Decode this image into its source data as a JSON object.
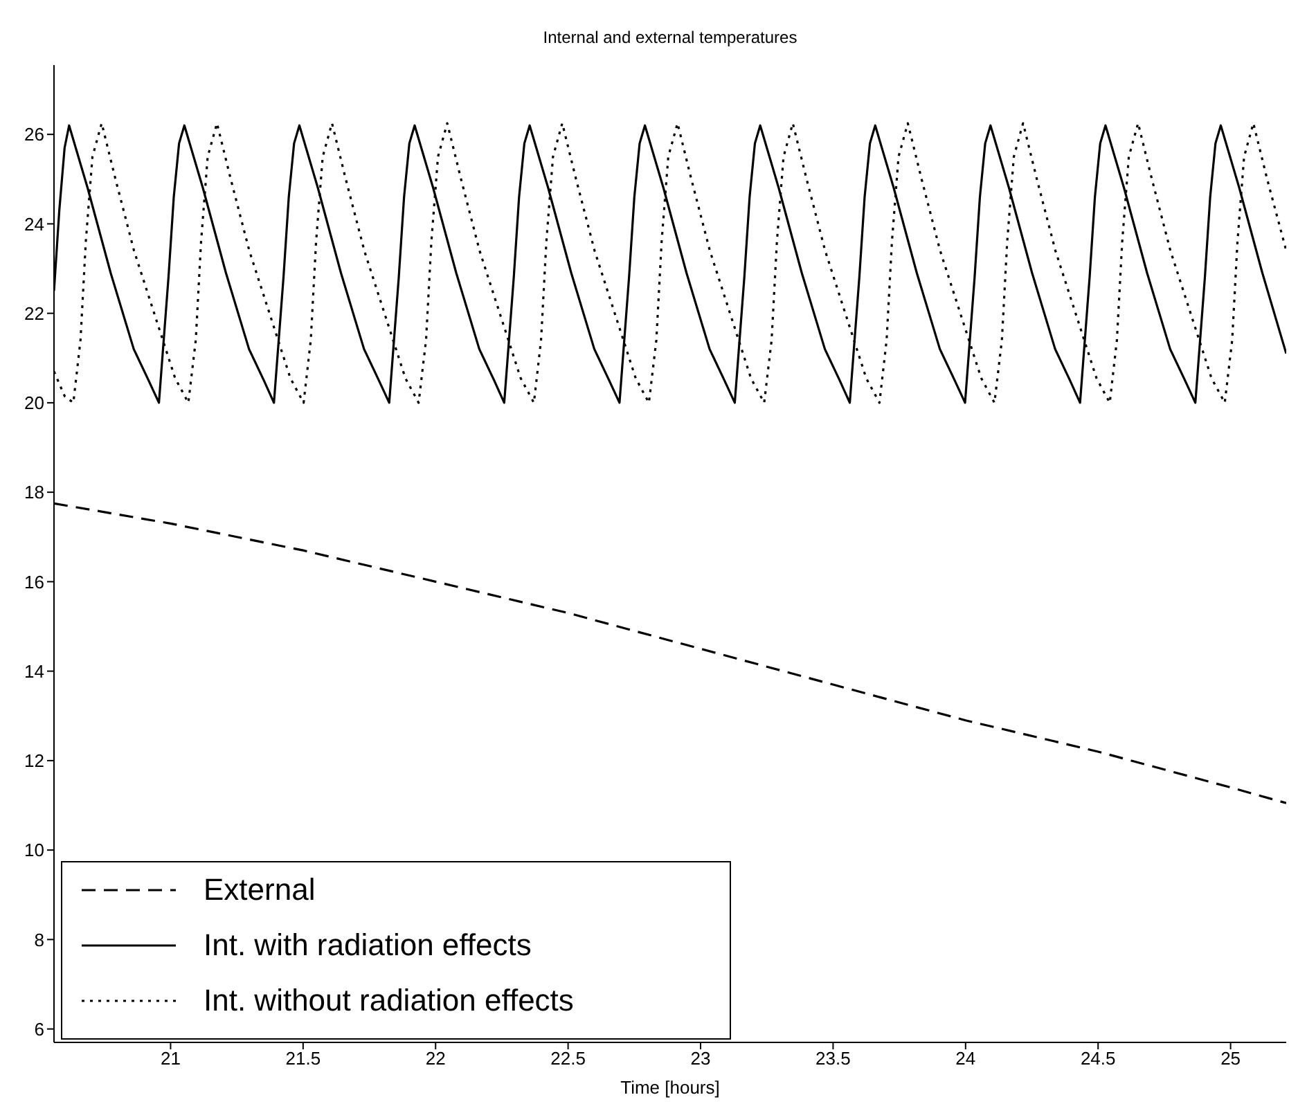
{
  "chart_data": {
    "type": "line",
    "title": "Internal and external temperatures",
    "xlabel": "Time [hours]",
    "xlim": [
      20.56,
      25.21
    ],
    "xticks": [
      21,
      21.5,
      22,
      22.5,
      23,
      23.5,
      24,
      24.5,
      25
    ],
    "ylim": [
      5.7,
      27.55
    ],
    "yticks": [
      6,
      8,
      10,
      12,
      14,
      16,
      18,
      20,
      22,
      24,
      26
    ],
    "grid": false,
    "legend": "bottom left",
    "series": [
      {
        "name": "External",
        "color": "#000000",
        "line_style": "dashed",
        "x": [
          20.56,
          21,
          21.5,
          22,
          22.5,
          23,
          23.5,
          24,
          24.5,
          25,
          25.21
        ],
        "values": [
          17.75,
          17.3,
          16.7,
          16.0,
          15.3,
          14.5,
          13.7,
          12.9,
          12.2,
          11.4,
          11.05
        ]
      },
      {
        "name": "Int. with radiation effects",
        "color": "#000000",
        "line_style": "solid",
        "x": [
          20.56,
          20.58,
          20.6,
          20.617,
          20.687,
          20.774,
          20.861,
          20.917,
          20.956,
          20.992,
          21.012,
          21.032,
          21.052,
          21.122,
          21.209,
          21.296,
          21.352,
          21.39,
          21.426,
          21.446,
          21.466,
          21.486,
          21.556,
          21.643,
          21.73,
          21.786,
          21.825,
          21.861,
          21.881,
          21.901,
          21.921,
          21.991,
          22.078,
          22.165,
          22.221,
          22.259,
          22.295,
          22.315,
          22.335,
          22.355,
          22.425,
          22.512,
          22.599,
          22.655,
          22.694,
          22.73,
          22.75,
          22.77,
          22.79,
          22.86,
          22.947,
          23.034,
          23.09,
          23.129,
          23.165,
          23.185,
          23.205,
          23.225,
          23.295,
          23.382,
          23.469,
          23.525,
          23.563,
          23.599,
          23.619,
          23.639,
          23.659,
          23.729,
          23.816,
          23.903,
          23.959,
          23.998,
          24.034,
          24.054,
          24.074,
          24.094,
          24.164,
          24.251,
          24.338,
          24.394,
          24.432,
          24.468,
          24.488,
          24.508,
          24.528,
          24.598,
          24.685,
          24.772,
          24.828,
          24.867,
          24.903,
          24.923,
          24.943,
          24.963,
          25.033,
          25.12,
          25.21
        ],
        "values": [
          22.5,
          24.3,
          25.7,
          26.2,
          24.8,
          22.9,
          21.2,
          20.5,
          20.0,
          22.8,
          24.6,
          25.8,
          26.2,
          24.8,
          22.9,
          21.2,
          20.5,
          20.0,
          22.8,
          24.6,
          25.8,
          26.2,
          24.8,
          22.9,
          21.2,
          20.5,
          20.0,
          22.8,
          24.6,
          25.8,
          26.2,
          24.8,
          22.9,
          21.2,
          20.5,
          20.0,
          22.8,
          24.6,
          25.8,
          26.2,
          24.8,
          22.9,
          21.2,
          20.5,
          20.0,
          22.8,
          24.6,
          25.8,
          26.2,
          24.8,
          22.9,
          21.2,
          20.5,
          20.0,
          22.8,
          24.6,
          25.8,
          26.2,
          24.8,
          22.9,
          21.2,
          20.5,
          20.0,
          22.8,
          24.6,
          25.8,
          26.2,
          24.8,
          22.9,
          21.2,
          20.5,
          20.0,
          22.8,
          24.6,
          25.8,
          26.2,
          24.8,
          22.9,
          21.2,
          20.5,
          20.0,
          22.8,
          24.6,
          25.8,
          26.2,
          24.8,
          22.9,
          21.2,
          20.5,
          20.0,
          22.8,
          24.6,
          25.8,
          26.2,
          24.8,
          22.9,
          21.1
        ]
      },
      {
        "name": "Int. without radiation effects",
        "color": "#000000",
        "line_style": "dotted",
        "x": [
          20.56,
          20.6,
          20.633,
          20.66,
          20.68,
          20.705,
          20.74,
          20.792,
          20.862,
          20.949,
          21.017,
          21.067,
          21.095,
          21.115,
          21.14,
          21.175,
          21.227,
          21.297,
          21.384,
          21.452,
          21.502,
          21.529,
          21.549,
          21.574,
          21.609,
          21.661,
          21.731,
          21.818,
          21.886,
          21.936,
          21.964,
          21.984,
          22.009,
          22.044,
          22.096,
          22.166,
          22.253,
          22.321,
          22.371,
          22.398,
          22.418,
          22.443,
          22.478,
          22.53,
          22.6,
          22.687,
          22.755,
          22.805,
          22.833,
          22.853,
          22.878,
          22.913,
          22.965,
          23.035,
          23.122,
          23.19,
          23.24,
          23.268,
          23.288,
          23.313,
          23.348,
          23.4,
          23.47,
          23.557,
          23.625,
          23.675,
          23.702,
          23.722,
          23.747,
          23.782,
          23.834,
          23.904,
          23.991,
          24.059,
          24.109,
          24.137,
          24.157,
          24.182,
          24.217,
          24.269,
          24.339,
          24.426,
          24.494,
          24.544,
          24.571,
          24.591,
          24.616,
          24.651,
          24.703,
          24.773,
          24.86,
          24.928,
          24.978,
          25.006,
          25.026,
          25.051,
          25.086,
          25.138,
          25.21
        ],
        "values": [
          20.7,
          20.15,
          20.0,
          21.4,
          23.6,
          25.5,
          26.25,
          25.0,
          23.4,
          21.8,
          20.55,
          20.0,
          21.4,
          23.6,
          25.5,
          26.25,
          25.0,
          23.4,
          21.8,
          20.55,
          20.0,
          21.4,
          23.6,
          25.5,
          26.25,
          25.0,
          23.4,
          21.8,
          20.55,
          20.0,
          21.4,
          23.6,
          25.5,
          26.25,
          25.0,
          23.4,
          21.8,
          20.55,
          20.0,
          21.4,
          23.6,
          25.5,
          26.25,
          25.0,
          23.4,
          21.8,
          20.55,
          20.0,
          21.4,
          23.6,
          25.5,
          26.25,
          25.0,
          23.4,
          21.8,
          20.55,
          20.0,
          21.4,
          23.6,
          25.5,
          26.25,
          25.0,
          23.4,
          21.8,
          20.55,
          20.0,
          21.4,
          23.6,
          25.5,
          26.25,
          25.0,
          23.4,
          21.8,
          20.55,
          20.0,
          21.4,
          23.6,
          25.5,
          26.25,
          25.0,
          23.4,
          21.8,
          20.55,
          20.0,
          21.4,
          23.6,
          25.5,
          26.25,
          25.0,
          23.4,
          21.8,
          20.55,
          20.0,
          21.4,
          23.6,
          25.5,
          26.25,
          25.0,
          23.4
        ]
      }
    ]
  }
}
